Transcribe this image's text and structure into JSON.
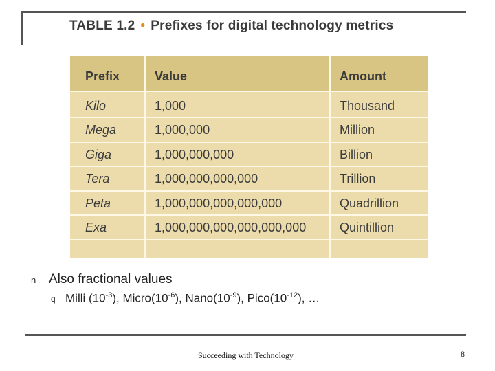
{
  "slide": {
    "title_label": "TABLE 1.2",
    "title_separator": "•",
    "title_text": "Prefixes for digital technology metrics",
    "table": {
      "headers": [
        "Prefix",
        "Value",
        "Amount"
      ],
      "rows": [
        [
          "Kilo",
          "1,000",
          "Thousand"
        ],
        [
          "Mega",
          "1,000,000",
          "Million"
        ],
        [
          "Giga",
          "1,000,000,000",
          "Billion"
        ],
        [
          "Tera",
          "1,000,000,000,000",
          "Trillion"
        ],
        [
          "Peta",
          "1,000,000,000,000,000",
          "Quadrillion"
        ],
        [
          "Exa",
          "1,000,000,000,000,000,000",
          "Quintillion"
        ]
      ]
    },
    "bullet_marker": "n",
    "bullet_text": "Also fractional values",
    "sub_bullet_marker": "q",
    "sub_bullet": {
      "milli": "Milli (10",
      "milli_exp": "-3",
      "micro": "), Micro(10",
      "micro_exp": "-6",
      "nano": "), Nano(10",
      "nano_exp": "-9",
      "pico": "), Pico(10",
      "pico_exp": "-12",
      "tail": "), …"
    },
    "footer_text": "Succeeding with Technology",
    "page_number": "8"
  }
}
